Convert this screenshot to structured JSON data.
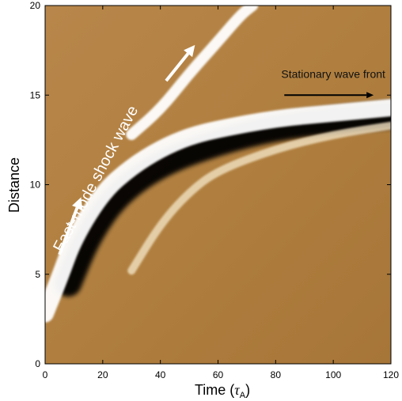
{
  "chart_data": {
    "type": "heatmap",
    "title": "",
    "xlabel_main": "Time (",
    "xlabel_tau": "τ",
    "xlabel_sub": "A",
    "xlabel_close": ")",
    "ylabel": "Distance",
    "xlim": [
      0,
      120
    ],
    "ylim": [
      0,
      20
    ],
    "x_ticks": [
      0,
      20,
      40,
      60,
      80,
      100,
      120
    ],
    "y_ticks": [
      0,
      5,
      10,
      15,
      20
    ],
    "x_tick_labels": [
      "0",
      "20",
      "40",
      "60",
      "80",
      "100",
      "120"
    ],
    "y_tick_labels": [
      "0",
      "5",
      "10",
      "15",
      "20"
    ],
    "grid": false,
    "colormap": [
      "#000000",
      "#b07f3f",
      "#ffffff"
    ],
    "annotations": [
      {
        "text": "Fast-mode shock wave",
        "x": 18,
        "y": 10.2,
        "color": "#ffffff"
      },
      {
        "text": "Stationary wave front",
        "x": 100,
        "y": 16.1,
        "color": "#111111"
      }
    ],
    "arrows": [
      {
        "name": "shock-arrow-lower",
        "from": [
          5,
          6.1
        ],
        "to": [
          12.5,
          9.3
        ],
        "color": "#ffffff"
      },
      {
        "name": "shock-arrow-upper",
        "from": [
          42,
          15.8
        ],
        "to": [
          52,
          17.8
        ],
        "color": "#ffffff"
      },
      {
        "name": "stationary-arrow",
        "from": [
          83,
          15.0
        ],
        "to": [
          114,
          15.0
        ],
        "color": "#000000"
      }
    ],
    "features": [
      {
        "name": "shock-front-white",
        "color": "#ffffff",
        "points": [
          [
            0,
            2.8
          ],
          [
            5,
            4.8
          ],
          [
            10,
            7.0
          ],
          [
            20,
            9.6
          ],
          [
            30,
            11.0
          ],
          [
            40,
            12.0
          ],
          [
            50,
            12.7
          ],
          [
            60,
            13.1
          ],
          [
            80,
            13.7
          ],
          [
            100,
            14.0
          ],
          [
            120,
            14.3
          ]
        ]
      },
      {
        "name": "shock-upper-branch",
        "color": "#ffffff",
        "points": [
          [
            30,
            12.8
          ],
          [
            40,
            14.2
          ],
          [
            50,
            16.2
          ],
          [
            60,
            18.0
          ],
          [
            68,
            19.5
          ],
          [
            72,
            20.0
          ]
        ]
      },
      {
        "name": "dark-wake-band",
        "color": "#000000",
        "points": [
          [
            8,
            4.5
          ],
          [
            15,
            7.2
          ],
          [
            25,
            9.5
          ],
          [
            40,
            11.2
          ],
          [
            60,
            12.4
          ],
          [
            80,
            13.2
          ],
          [
            100,
            13.6
          ],
          [
            120,
            13.9
          ]
        ]
      },
      {
        "name": "secondary-wave",
        "color": "#f2e2c2",
        "points": [
          [
            30,
            5.2
          ],
          [
            40,
            7.8
          ],
          [
            50,
            9.6
          ],
          [
            60,
            10.8
          ],
          [
            80,
            12.0
          ],
          [
            100,
            12.8
          ],
          [
            120,
            13.3
          ]
        ]
      }
    ]
  }
}
